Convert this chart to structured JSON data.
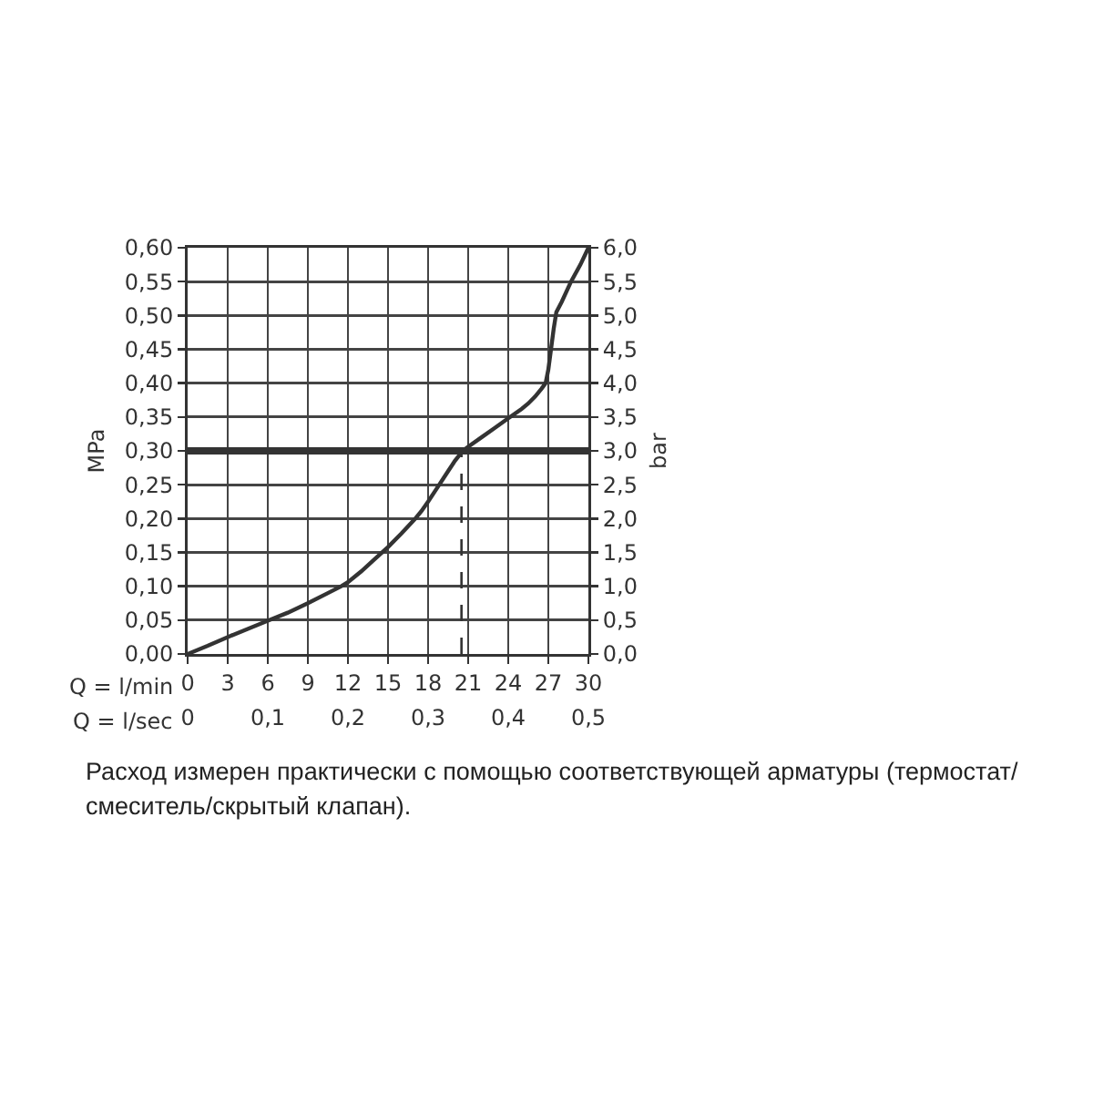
{
  "chart_data": {
    "type": "line",
    "xlabel": "Q = l/min",
    "x2label": "Q = l/sec",
    "ylabel": "MPa",
    "y2label": "bar",
    "annotations": [
      "Расход измерен практически с помощью соответствующей арматуры (термостат/смеситель/скрытый клапан)."
    ],
    "xlim": [
      0,
      30
    ],
    "xticks": [
      0,
      3,
      6,
      9,
      12,
      15,
      18,
      21,
      24,
      27,
      30
    ],
    "x2lim": [
      0,
      0.5
    ],
    "x2ticks": [
      0,
      {
        "value": 0.1,
        "label": "0,1"
      },
      {
        "value": 0.2,
        "label": "0,2"
      },
      {
        "value": 0.3,
        "label": "0,3"
      },
      {
        "value": 0.4,
        "label": "0,4"
      },
      {
        "value": 0.5,
        "label": "0,5"
      }
    ],
    "ylim": [
      0,
      0.6
    ],
    "yticks": [
      {
        "value": 0,
        "label": "0,00"
      },
      {
        "value": 0.05,
        "label": "0,05"
      },
      {
        "value": 0.1,
        "label": "0,10"
      },
      {
        "value": 0.15,
        "label": "0,15"
      },
      {
        "value": 0.2,
        "label": "0,20"
      },
      {
        "value": 0.25,
        "label": "0,25"
      },
      {
        "value": 0.3,
        "label": "0,30"
      },
      {
        "value": 0.35,
        "label": "0,35"
      },
      {
        "value": 0.4,
        "label": "0,40"
      },
      {
        "value": 0.45,
        "label": "0,45"
      },
      {
        "value": 0.5,
        "label": "0,50"
      },
      {
        "value": 0.55,
        "label": "0,55"
      },
      {
        "value": 0.6,
        "label": "0,60"
      }
    ],
    "y2lim": [
      0,
      6
    ],
    "y2ticks": [
      {
        "value": 0,
        "label": "0,0"
      },
      {
        "value": 0.5,
        "label": "0,5"
      },
      {
        "value": 1,
        "label": "1,0"
      },
      {
        "value": 1.5,
        "label": "1,5"
      },
      {
        "value": 2,
        "label": "2,0"
      },
      {
        "value": 2.5,
        "label": "2,5"
      },
      {
        "value": 3,
        "label": "3,0"
      },
      {
        "value": 3.5,
        "label": "3,5"
      },
      {
        "value": 4,
        "label": "4,0"
      },
      {
        "value": 4.5,
        "label": "4,5"
      },
      {
        "value": 5,
        "label": "5,0"
      },
      {
        "value": 5.5,
        "label": "5,5"
      },
      {
        "value": 6,
        "label": "6,0"
      }
    ],
    "series": [
      {
        "color": "#333333",
        "x": [
          0,
          1.5,
          3,
          4.5,
          6,
          7.5,
          9,
          10.5,
          11.5,
          12,
          13,
          14,
          15,
          16,
          17,
          17.5,
          18,
          18.5,
          19,
          19.5,
          20,
          20.6,
          21,
          22,
          23,
          24,
          25,
          25.5,
          26,
          26.5,
          26.8,
          27,
          27.2,
          27.4,
          27.6,
          28,
          28.7,
          29.4,
          30
        ],
        "values": [
          0,
          0.012,
          0.025,
          0.037,
          0.049,
          0.061,
          0.075,
          0.09,
          0.1,
          0.106,
          0.122,
          0.14,
          0.158,
          0.178,
          0.199,
          0.211,
          0.225,
          0.24,
          0.255,
          0.27,
          0.285,
          0.3,
          0.306,
          0.32,
          0.334,
          0.348,
          0.362,
          0.37,
          0.38,
          0.392,
          0.4,
          0.42,
          0.45,
          0.48,
          0.505,
          0.52,
          0.55,
          0.575,
          0.6
        ]
      },
      {
        "type": "line",
        "color": "#333333",
        "line_style": "dashed",
        "x": [
          20.5,
          20.5
        ],
        "values": [
          0,
          0.3
        ]
      }
    ],
    "ref_lines": [
      {
        "axis": "y",
        "value": 0.3,
        "color": "#333333"
      }
    ],
    "grid": true,
    "marker": "none",
    "line_style": "solid"
  }
}
